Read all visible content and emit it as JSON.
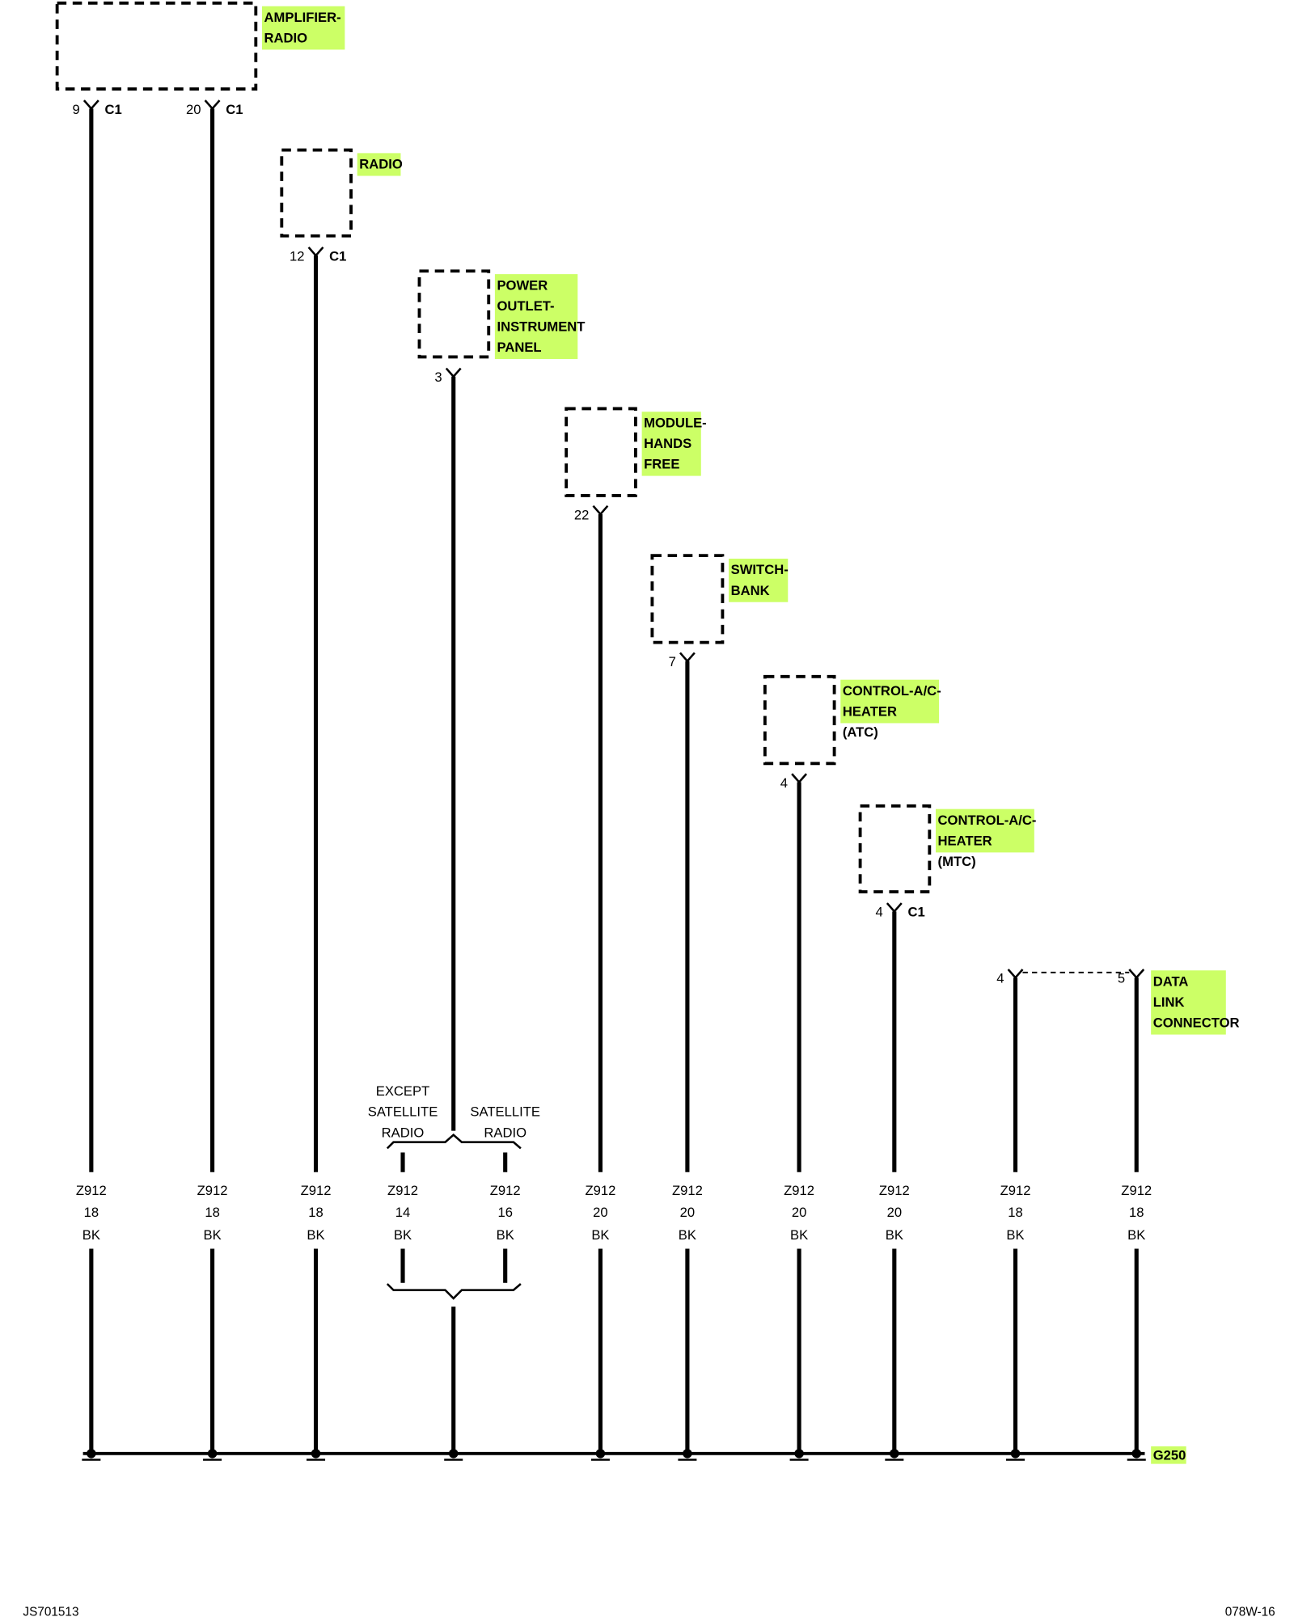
{
  "colors": {
    "highlight": "#ccff66",
    "line": "#000000"
  },
  "components": [
    {
      "name": [
        "AMPLIFIER-",
        "RADIO"
      ],
      "pins": [
        {
          "pin": "9",
          "connector": "C1"
        },
        {
          "pin": "20",
          "connector": "C1"
        }
      ]
    },
    {
      "name": [
        "RADIO"
      ],
      "pins": [
        {
          "pin": "12",
          "connector": "C1"
        }
      ]
    },
    {
      "name": [
        "POWER",
        "OUTLET-",
        "INSTRUMENT",
        "PANEL"
      ],
      "pins": [
        {
          "pin": "3",
          "connector": ""
        }
      ]
    },
    {
      "name": [
        "MODULE-",
        "HANDS",
        "FREE"
      ],
      "pins": [
        {
          "pin": "22",
          "connector": ""
        }
      ]
    },
    {
      "name": [
        "SWITCH-",
        "BANK"
      ],
      "pins": [
        {
          "pin": "7",
          "connector": ""
        }
      ]
    },
    {
      "name": [
        "CONTROL-A/C-",
        "HEATER"
      ],
      "note": "(ATC)",
      "pins": [
        {
          "pin": "4",
          "connector": ""
        }
      ]
    },
    {
      "name": [
        "CONTROL-A/C-",
        "HEATER"
      ],
      "note": "(MTC)",
      "pins": [
        {
          "pin": "4",
          "connector": "C1"
        }
      ]
    },
    {
      "name": [
        "DATA",
        "LINK",
        "CONNECTOR"
      ],
      "pins": [
        {
          "pin": "4",
          "connector": ""
        },
        {
          "pin": "5",
          "connector": ""
        }
      ]
    }
  ],
  "options": {
    "left": [
      "EXCEPT",
      "SATELLITE",
      "RADIO"
    ],
    "right": [
      "SATELLITE",
      "RADIO"
    ]
  },
  "wires": [
    {
      "circuit": "Z912",
      "gauge": "18",
      "color": "BK"
    },
    {
      "circuit": "Z912",
      "gauge": "18",
      "color": "BK"
    },
    {
      "circuit": "Z912",
      "gauge": "18",
      "color": "BK"
    },
    {
      "circuit": "Z912",
      "gauge": "14",
      "color": "BK"
    },
    {
      "circuit": "Z912",
      "gauge": "16",
      "color": "BK"
    },
    {
      "circuit": "Z912",
      "gauge": "20",
      "color": "BK"
    },
    {
      "circuit": "Z912",
      "gauge": "20",
      "color": "BK"
    },
    {
      "circuit": "Z912",
      "gauge": "20",
      "color": "BK"
    },
    {
      "circuit": "Z912",
      "gauge": "20",
      "color": "BK"
    },
    {
      "circuit": "Z912",
      "gauge": "18",
      "color": "BK"
    },
    {
      "circuit": "Z912",
      "gauge": "18",
      "color": "BK"
    }
  ],
  "ground": "G250",
  "footer": {
    "left": "JS701513",
    "right": "078W-16"
  }
}
